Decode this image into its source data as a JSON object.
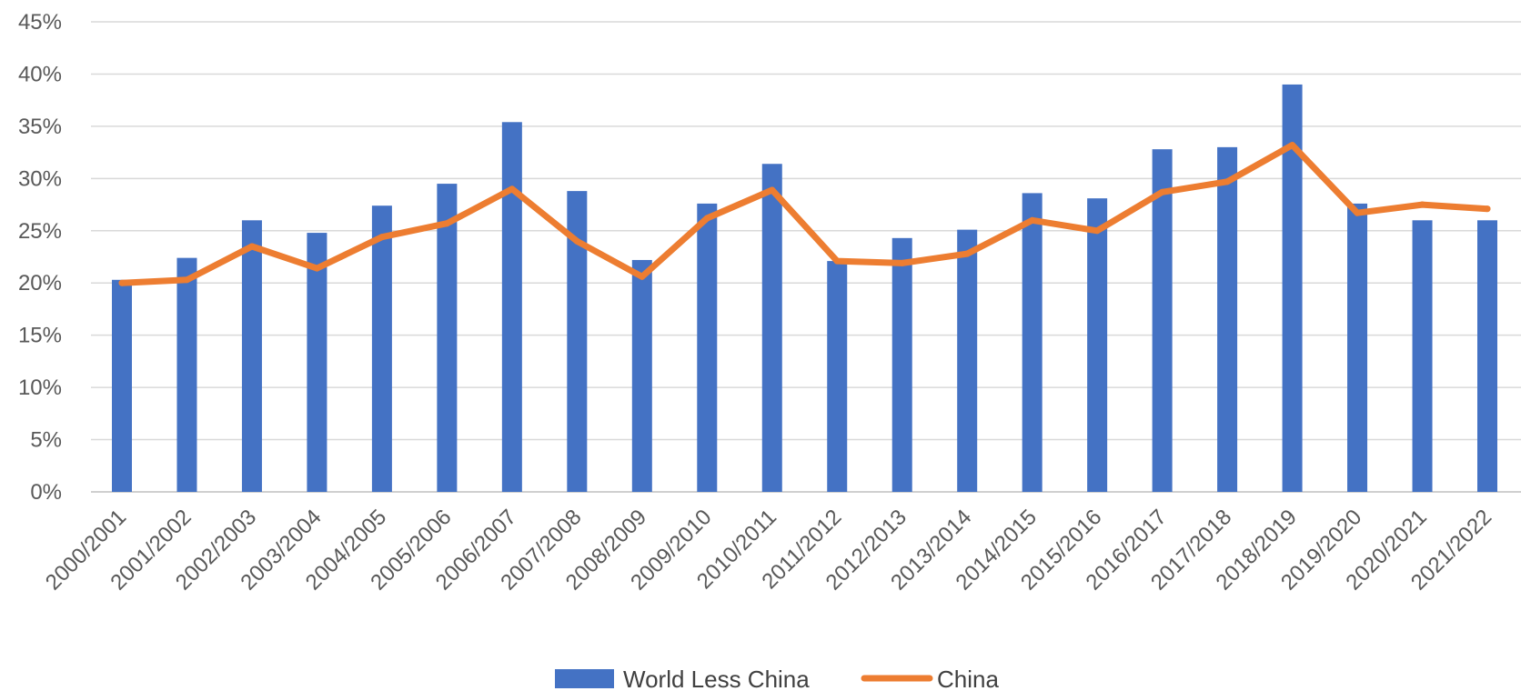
{
  "chart_data": {
    "type": "bar",
    "categories": [
      "2000/2001",
      "2001/2002",
      "2002/2003",
      "2003/2004",
      "2004/2005",
      "2005/2006",
      "2006/2007",
      "2007/2008",
      "2008/2009",
      "2009/2010",
      "2010/2011",
      "2011/2012",
      "2012/2013",
      "2013/2014",
      "2014/2015",
      "2015/2016",
      "2016/2017",
      "2017/2018",
      "2018/2019",
      "2019/2020",
      "2020/2021",
      "2021/2022"
    ],
    "series": [
      {
        "name": "World Less China",
        "type": "bar",
        "color": "#4472C4",
        "values": [
          20.3,
          22.4,
          26.0,
          24.8,
          27.4,
          29.5,
          35.4,
          28.8,
          22.2,
          27.6,
          31.4,
          22.1,
          24.3,
          25.1,
          28.6,
          28.1,
          32.8,
          33.0,
          39.0,
          27.6,
          26.0,
          26.0
        ]
      },
      {
        "name": "China",
        "type": "line",
        "color": "#ED7D31",
        "values": [
          20.0,
          20.3,
          23.5,
          21.4,
          24.4,
          25.7,
          29.0,
          24.0,
          20.6,
          26.2,
          28.9,
          22.1,
          21.9,
          22.8,
          26.0,
          25.0,
          28.7,
          29.7,
          33.2,
          26.7,
          27.5,
          27.1
        ]
      }
    ],
    "ylim": [
      0,
      45
    ],
    "yticks": [
      0,
      5,
      10,
      15,
      20,
      25,
      30,
      35,
      40,
      45
    ],
    "ytick_labels": [
      "0%",
      "5%",
      "10%",
      "15%",
      "20%",
      "25%",
      "30%",
      "35%",
      "40%",
      "45%"
    ],
    "grid": true,
    "legend_position": "bottom",
    "title": "",
    "xlabel": "",
    "ylabel": ""
  }
}
